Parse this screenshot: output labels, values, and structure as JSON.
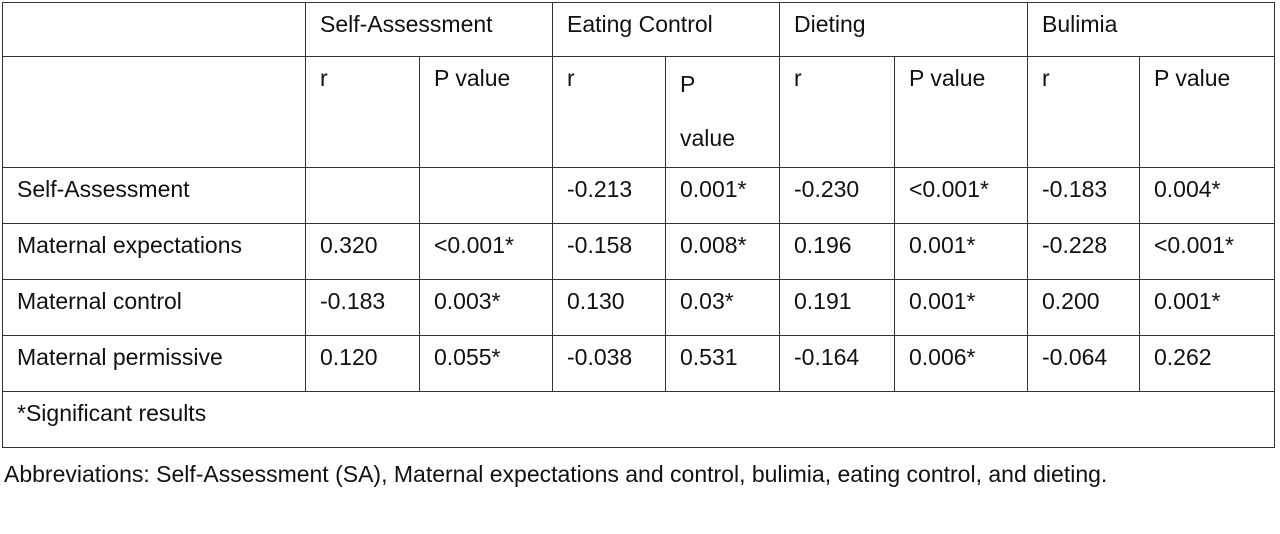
{
  "table": {
    "groups": [
      "Self-Assessment",
      "Eating Control",
      "Dieting",
      "Bulimia"
    ],
    "subheaders": {
      "r": "r",
      "p_value": "P value",
      "p_value_wrapped": [
        "P",
        "value"
      ]
    },
    "rows": [
      {
        "label": "Self-Assessment",
        "cells": [
          "",
          "",
          "-0.213",
          "0.001*",
          "-0.230",
          "<0.001*",
          "-0.183",
          "0.004*"
        ]
      },
      {
        "label": "Maternal expectations",
        "cells": [
          "0.320",
          "<0.001*",
          "-0.158",
          "0.008*",
          "0.196",
          "0.001*",
          "-0.228",
          "<0.001*"
        ]
      },
      {
        "label": "Maternal control",
        "cells": [
          "-0.183",
          "0.003*",
          "0.130",
          "0.03*",
          "0.191",
          "0.001*",
          "0.200",
          "0.001*"
        ]
      },
      {
        "label": "Maternal permissive",
        "cells": [
          "0.120",
          "0.055*",
          "-0.038",
          "0.531",
          "-0.164",
          "0.006*",
          "-0.064",
          "0.262"
        ]
      }
    ],
    "footnote": "*Significant results"
  },
  "abbreviations": "Abbreviations: Self-Assessment (SA), Maternal expectations and control, bulimia, eating control, and dieting."
}
